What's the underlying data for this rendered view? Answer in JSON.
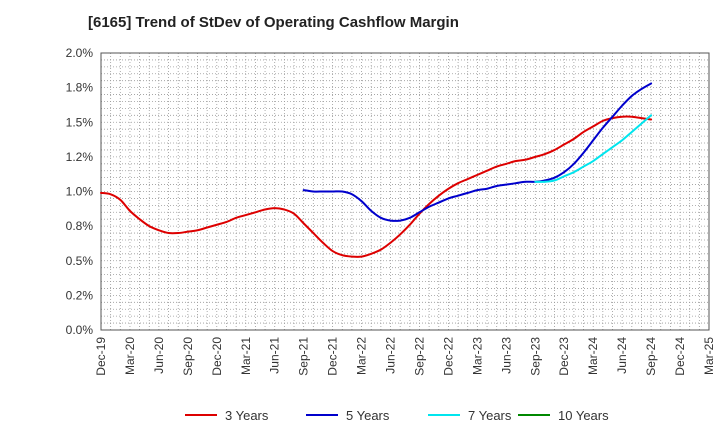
{
  "chart_data": {
    "type": "line",
    "title": "[6165]  Trend of StDev of Operating Cashflow Margin",
    "xlabel": "",
    "ylabel": "",
    "x_ticks": [
      "Dec-19",
      "Mar-20",
      "Jun-20",
      "Sep-20",
      "Dec-20",
      "Mar-21",
      "Jun-21",
      "Sep-21",
      "Dec-21",
      "Mar-22",
      "Jun-22",
      "Sep-22",
      "Dec-22",
      "Mar-23",
      "Jun-23",
      "Sep-23",
      "Dec-23",
      "Mar-24",
      "Jun-24",
      "Sep-24",
      "Dec-24",
      "Mar-25"
    ],
    "y_ticks": [
      "0.0%",
      "0.2%",
      "0.5%",
      "0.8%",
      "1.0%",
      "1.2%",
      "1.5%",
      "1.8%",
      "2.0%"
    ],
    "y_tick_values": [
      0,
      0.25,
      0.5,
      0.75,
      1.0,
      1.25,
      1.5,
      1.75,
      2.0
    ],
    "ylim": [
      0,
      2.0
    ],
    "grid": true,
    "legend_position": "bottom",
    "series": [
      {
        "name": "3 Years",
        "color": "#dd0000",
        "x": [
          "Dec-19",
          "Jan-20",
          "Feb-20",
          "Mar-20",
          "Apr-20",
          "May-20",
          "Jun-20",
          "Jul-20",
          "Aug-20",
          "Sep-20",
          "Oct-20",
          "Nov-20",
          "Dec-20",
          "Jan-21",
          "Feb-21",
          "Mar-21",
          "Apr-21",
          "May-21",
          "Jun-21",
          "Jul-21",
          "Aug-21",
          "Sep-21",
          "Oct-21",
          "Nov-21",
          "Dec-21",
          "Jan-22",
          "Feb-22",
          "Mar-22",
          "Apr-22",
          "May-22",
          "Jun-22",
          "Jul-22",
          "Aug-22",
          "Sep-22",
          "Oct-22",
          "Nov-22",
          "Dec-22",
          "Jan-23",
          "Feb-23",
          "Mar-23",
          "Apr-23",
          "May-23",
          "Jun-23",
          "Jul-23",
          "Aug-23",
          "Sep-23",
          "Oct-23",
          "Nov-23",
          "Dec-23",
          "Jan-24",
          "Feb-24",
          "Mar-24",
          "Apr-24",
          "May-24",
          "Jun-24",
          "Jul-24",
          "Aug-24",
          "Sep-24"
        ],
        "values": [
          0.99,
          0.98,
          0.94,
          0.86,
          0.8,
          0.75,
          0.72,
          0.7,
          0.7,
          0.71,
          0.72,
          0.74,
          0.76,
          0.78,
          0.81,
          0.83,
          0.85,
          0.87,
          0.88,
          0.87,
          0.84,
          0.77,
          0.7,
          0.63,
          0.57,
          0.54,
          0.53,
          0.53,
          0.55,
          0.58,
          0.63,
          0.69,
          0.76,
          0.84,
          0.91,
          0.97,
          1.02,
          1.06,
          1.09,
          1.12,
          1.15,
          1.18,
          1.2,
          1.22,
          1.23,
          1.25,
          1.27,
          1.3,
          1.34,
          1.38,
          1.43,
          1.47,
          1.51,
          1.53,
          1.54,
          1.54,
          1.53,
          1.52
        ]
      },
      {
        "name": "5 Years",
        "color": "#0000cc",
        "x": [
          "Sep-21",
          "Oct-21",
          "Nov-21",
          "Dec-21",
          "Jan-22",
          "Feb-22",
          "Mar-22",
          "Apr-22",
          "May-22",
          "Jun-22",
          "Jul-22",
          "Aug-22",
          "Sep-22",
          "Oct-22",
          "Nov-22",
          "Dec-22",
          "Jan-23",
          "Feb-23",
          "Mar-23",
          "Apr-23",
          "May-23",
          "Jun-23",
          "Jul-23",
          "Aug-23",
          "Sep-23",
          "Oct-23",
          "Nov-23",
          "Dec-23",
          "Jan-24",
          "Feb-24",
          "Mar-24",
          "Apr-24",
          "May-24",
          "Jun-24",
          "Jul-24",
          "Aug-24",
          "Sep-24"
        ],
        "values": [
          1.01,
          1.0,
          1.0,
          1.0,
          1.0,
          0.98,
          0.93,
          0.86,
          0.81,
          0.79,
          0.79,
          0.81,
          0.85,
          0.89,
          0.92,
          0.95,
          0.97,
          0.99,
          1.01,
          1.02,
          1.04,
          1.05,
          1.06,
          1.07,
          1.07,
          1.08,
          1.1,
          1.14,
          1.2,
          1.28,
          1.37,
          1.46,
          1.54,
          1.62,
          1.69,
          1.74,
          1.78
        ]
      },
      {
        "name": "7 Years",
        "color": "#00e5ee",
        "x": [
          "Sep-23",
          "Oct-23",
          "Nov-23",
          "Dec-23",
          "Jan-24",
          "Feb-24",
          "Mar-24",
          "Apr-24",
          "May-24",
          "Jun-24",
          "Jul-24",
          "Aug-24",
          "Sep-24"
        ],
        "values": [
          1.07,
          1.07,
          1.08,
          1.11,
          1.14,
          1.18,
          1.22,
          1.27,
          1.32,
          1.37,
          1.43,
          1.49,
          1.55
        ]
      },
      {
        "name": "10 Years",
        "color": "#008800",
        "x": [],
        "values": []
      }
    ]
  }
}
